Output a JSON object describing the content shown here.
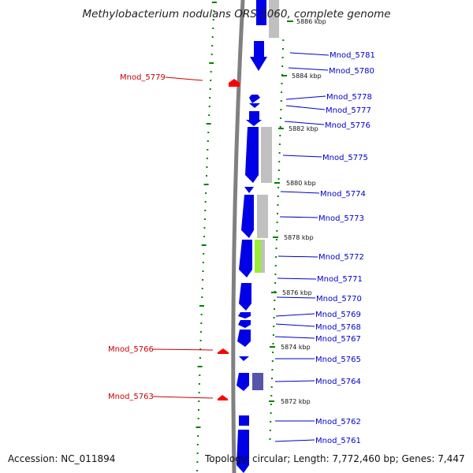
{
  "title": "Methylobacterium nodulans ORS 2060, complete genome",
  "accession": "Accession: NC_011894",
  "topology": "Topology: circular; Length: 7,772,460 bp; Genes: 7,447",
  "colors": {
    "forward_gene": "#0000e6",
    "reverse_gene": "#ff0000",
    "forward_label": "#0000cc",
    "reverse_label": "#cc0000",
    "backbone": "#808080",
    "tick": "#008000",
    "homolog_gray": "#c0c0c0",
    "homolog_green": "#99ee33",
    "homolog_navy": "#5555aa"
  },
  "kbp_labels": [
    "5886 kbp",
    "5884 kbp",
    "5882 kbp",
    "5880 kbp",
    "5878 kbp",
    "5876 kbp",
    "5874 kbp",
    "5872 kbp"
  ],
  "forward_labels": [
    "Mnod_5781",
    "Mnod_5780",
    "Mnod_5778",
    "Mnod_5777",
    "Mnod_5776",
    "Mnod_5775",
    "Mnod_5774",
    "Mnod_5773",
    "Mnod_5772",
    "Mnod_5771",
    "Mnod_5770",
    "Mnod_5769",
    "Mnod_5768",
    "Mnod_5767",
    "Mnod_5765",
    "Mnod_5764",
    "Mnod_5762",
    "Mnod_5761"
  ],
  "reverse_labels": [
    "Mnod_5779",
    "Mnod_5766",
    "Mnod_5763"
  ]
}
